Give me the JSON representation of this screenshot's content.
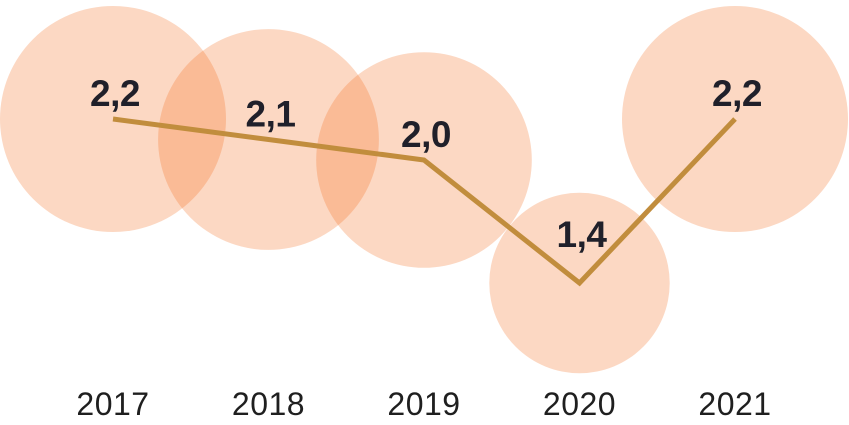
{
  "chart_data": {
    "type": "line",
    "subtype": "line-with-area-proportional-bubbles",
    "categories": [
      "2017",
      "2018",
      "2019",
      "2020",
      "2021"
    ],
    "values": [
      2.2,
      2.1,
      2.0,
      1.4,
      2.2
    ],
    "value_labels": [
      "2,2",
      "2,1",
      "2,0",
      "1,4",
      "2,2"
    ],
    "title": "",
    "xlabel": "",
    "ylabel": "",
    "ylim": [
      0,
      2.5
    ],
    "grid": false,
    "legend": "none",
    "decimal_separator": ",",
    "bubble_note": "bubble area proportional to value, centered on each data point",
    "style": {
      "background": "#ffffff",
      "bubble_color": "#f4650f",
      "bubble_opacity": 0.25,
      "bubble_overlap_color_effective": "#fabb96",
      "bubble_single_color_effective": "#fcd8c3",
      "line_color": "#c18d3d",
      "value_label_color": "#20202a",
      "year_label_color": "#1f1f1f"
    }
  }
}
